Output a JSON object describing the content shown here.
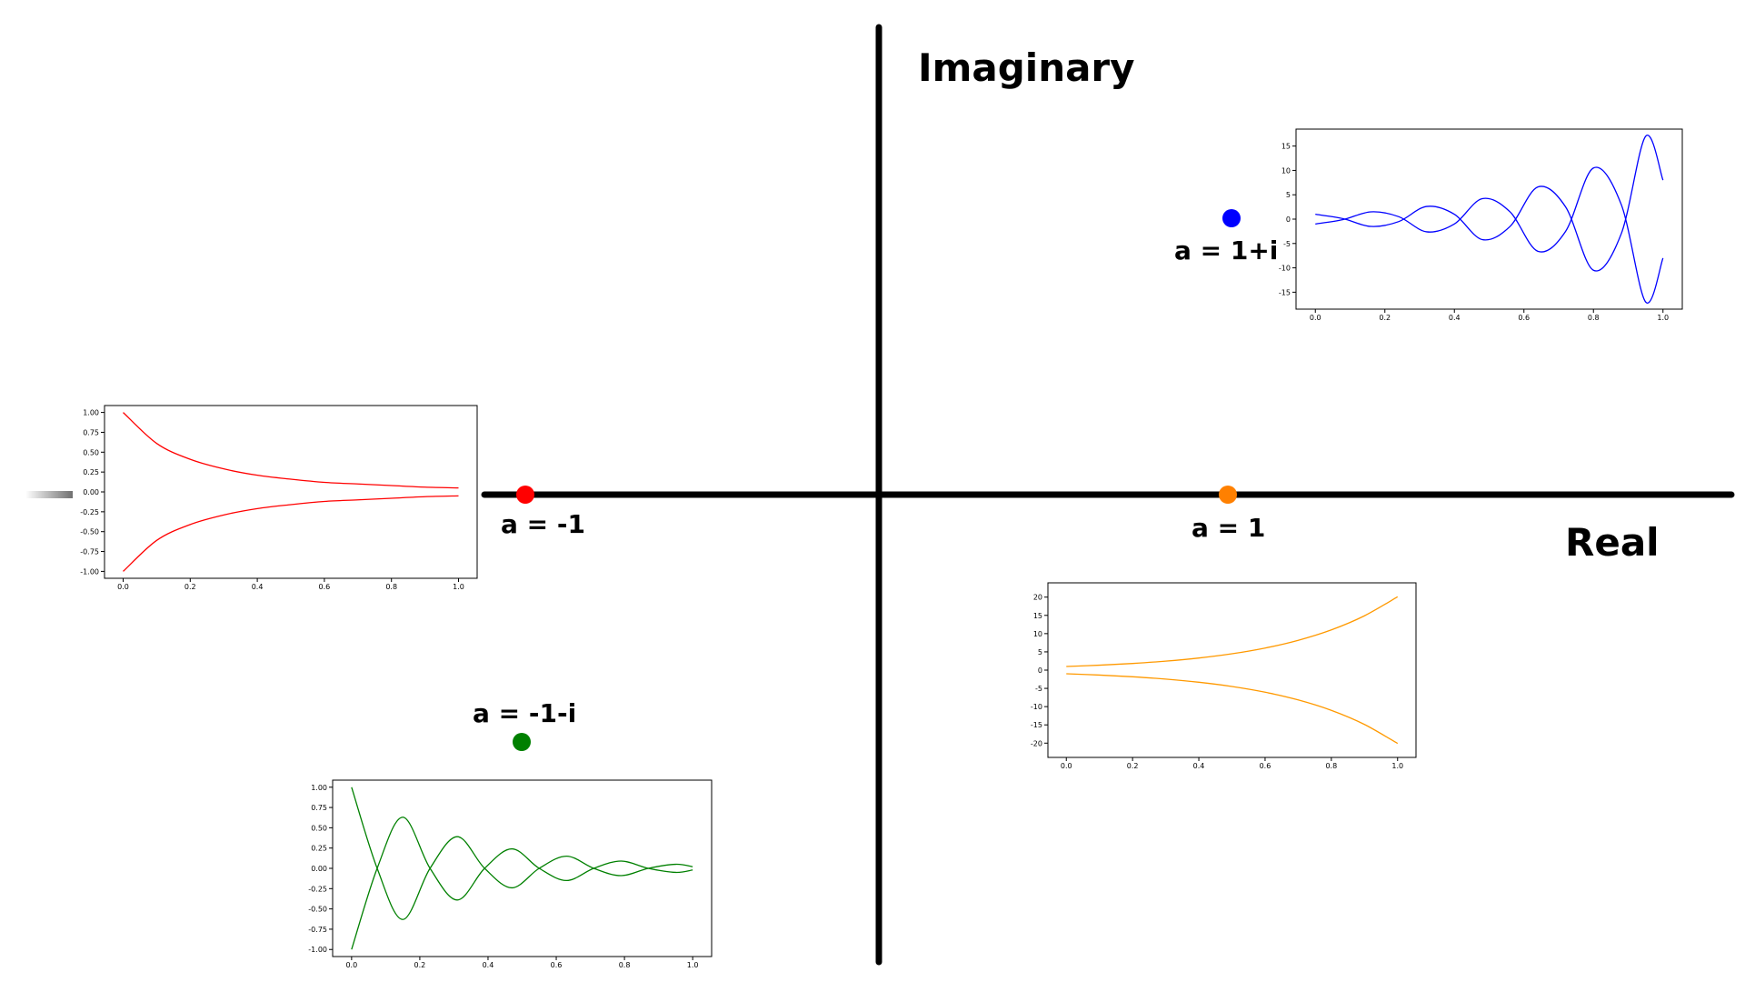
{
  "axes": {
    "imaginary_label": "Imaginary",
    "real_label": "Real"
  },
  "points": [
    {
      "id": "neg1",
      "label": "a = -1",
      "color": "#ff0000"
    },
    {
      "id": "pos1",
      "label": "a = 1",
      "color": "#ff8000"
    },
    {
      "id": "onepi",
      "label": "a = 1+i",
      "color": "#0000ff"
    },
    {
      "id": "neg1mi",
      "label": "a = -1-i",
      "color": "#008000"
    }
  ],
  "chart_data": [
    {
      "id": "chart-a-neg1",
      "type": "line",
      "color": "#ff0000",
      "xlim": [
        0,
        1
      ],
      "ylim": [
        -1.0,
        1.0
      ],
      "xticks": [
        "0.0",
        "0.2",
        "0.4",
        "0.6",
        "0.8",
        "1.0"
      ],
      "yticks": [
        "1.00",
        "0.75",
        "0.50",
        "0.25",
        "0.00",
        "-0.25",
        "-0.50",
        "-0.75",
        "-1.00"
      ],
      "series": [
        {
          "x": [
            0,
            0.1,
            0.2,
            0.3,
            0.4,
            0.5,
            0.6,
            0.7,
            0.8,
            0.9,
            1.0
          ],
          "y": [
            1.0,
            0.61,
            0.41,
            0.29,
            0.21,
            0.16,
            0.12,
            0.1,
            0.08,
            0.06,
            0.05
          ]
        },
        {
          "x": [
            0,
            0.1,
            0.2,
            0.3,
            0.4,
            0.5,
            0.6,
            0.7,
            0.8,
            0.9,
            1.0
          ],
          "y": [
            -1.0,
            -0.61,
            -0.41,
            -0.29,
            -0.21,
            -0.16,
            -0.12,
            -0.1,
            -0.08,
            -0.06,
            -0.05
          ]
        }
      ]
    },
    {
      "id": "chart-a-1",
      "type": "line",
      "color": "#ff9900",
      "xlim": [
        0,
        1
      ],
      "ylim": [
        -22,
        22
      ],
      "xticks": [
        "0.0",
        "0.2",
        "0.4",
        "0.6",
        "0.8",
        "1.0"
      ],
      "yticks": [
        "20",
        "15",
        "10",
        "5",
        "0",
        "-5",
        "-10",
        "-15",
        "-20"
      ],
      "series": [
        {
          "x": [
            0,
            0.1,
            0.2,
            0.3,
            0.4,
            0.5,
            0.6,
            0.7,
            0.8,
            0.9,
            1.0
          ],
          "y": [
            1.0,
            1.35,
            1.82,
            2.46,
            3.32,
            4.48,
            6.05,
            8.17,
            11.02,
            14.88,
            20.09
          ]
        },
        {
          "x": [
            0,
            0.1,
            0.2,
            0.3,
            0.4,
            0.5,
            0.6,
            0.7,
            0.8,
            0.9,
            1.0
          ],
          "y": [
            -1.0,
            -1.35,
            -1.82,
            -2.46,
            -3.32,
            -4.48,
            -6.05,
            -8.17,
            -11.02,
            -14.88,
            -20.09
          ]
        }
      ]
    },
    {
      "id": "chart-a-1pi",
      "type": "line",
      "color": "#0000ff",
      "xlim": [
        0,
        1
      ],
      "ylim": [
        -17,
        17
      ],
      "xticks": [
        "0.0",
        "0.2",
        "0.4",
        "0.6",
        "0.8",
        "1.0"
      ],
      "yticks": [
        "15",
        "10",
        "5",
        "0",
        "-5",
        "-10",
        "-15"
      ],
      "series": [
        {
          "x": [
            0,
            0.08,
            0.16,
            0.24,
            0.32,
            0.4,
            0.48,
            0.56,
            0.64,
            0.72,
            0.8,
            0.88,
            0.95,
            1.0
          ],
          "y": [
            1.0,
            0.1,
            -1.5,
            -0.5,
            2.6,
            1.0,
            -4.2,
            -1.5,
            6.6,
            2.5,
            -10.5,
            -3.0,
            17.0,
            8.0
          ]
        },
        {
          "x": [
            0,
            0.08,
            0.16,
            0.24,
            0.32,
            0.4,
            0.48,
            0.56,
            0.64,
            0.72,
            0.8,
            0.88,
            0.95,
            1.0
          ],
          "y": [
            -1.0,
            -0.1,
            1.5,
            0.5,
            -2.6,
            -1.0,
            4.2,
            1.5,
            -6.6,
            -2.5,
            10.5,
            3.0,
            -17.0,
            -8.0
          ]
        }
      ]
    },
    {
      "id": "chart-a-neg1mi",
      "type": "line",
      "color": "#008000",
      "xlim": [
        0,
        1
      ],
      "ylim": [
        -1.0,
        1.0
      ],
      "xticks": [
        "0.0",
        "0.2",
        "0.4",
        "0.6",
        "0.8",
        "1.0"
      ],
      "yticks": [
        "1.00",
        "0.75",
        "0.50",
        "0.25",
        "0.00",
        "-0.25",
        "-0.50",
        "-0.75",
        "-1.00"
      ],
      "series": [
        {
          "x": [
            0,
            0.075,
            0.15,
            0.23,
            0.31,
            0.39,
            0.47,
            0.55,
            0.63,
            0.71,
            0.79,
            0.87,
            0.95,
            1.0
          ],
          "y": [
            1.0,
            0.0,
            -0.63,
            0.0,
            0.39,
            0.0,
            -0.24,
            0.0,
            0.15,
            0.0,
            -0.09,
            0.0,
            0.05,
            0.02
          ]
        },
        {
          "x": [
            0,
            0.075,
            0.15,
            0.23,
            0.31,
            0.39,
            0.47,
            0.55,
            0.63,
            0.71,
            0.79,
            0.87,
            0.95,
            1.0
          ],
          "y": [
            -1.0,
            0.0,
            0.63,
            0.0,
            -0.39,
            0.0,
            0.24,
            0.0,
            -0.15,
            0.0,
            0.09,
            0.0,
            -0.05,
            -0.02
          ]
        }
      ]
    }
  ]
}
